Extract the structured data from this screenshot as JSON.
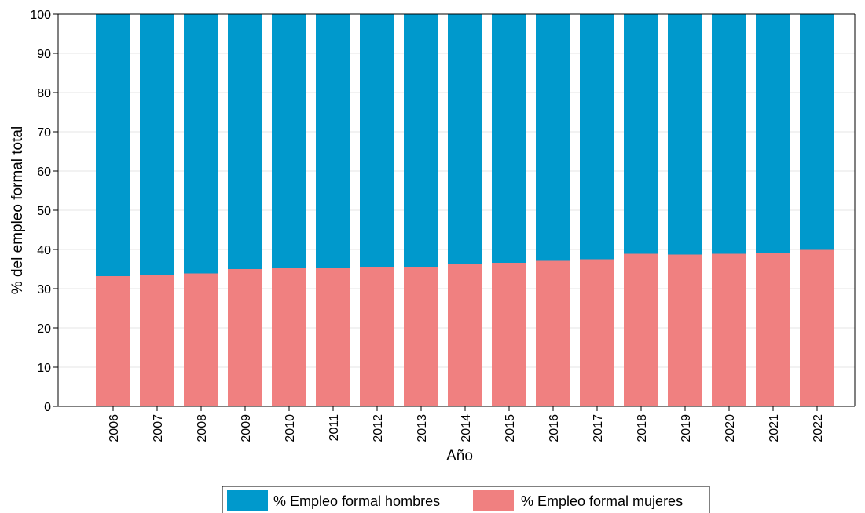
{
  "chart_data": {
    "type": "bar",
    "stacked": true,
    "categories": [
      "2006",
      "2007",
      "2008",
      "2009",
      "2010",
      "2011",
      "2012",
      "2013",
      "2014",
      "2015",
      "2016",
      "2017",
      "2018",
      "2019",
      "2020",
      "2021",
      "2022"
    ],
    "series": [
      {
        "name": "% Empleo formal mujeres",
        "color": "#F08080",
        "values": [
          33.2,
          33.6,
          33.9,
          35.0,
          35.2,
          35.2,
          35.4,
          35.6,
          36.3,
          36.6,
          37.1,
          37.5,
          38.9,
          38.7,
          38.9,
          39.1,
          39.9
        ]
      },
      {
        "name": "% Empleo formal hombres",
        "color": "#0099CC",
        "values": [
          66.8,
          66.4,
          66.1,
          65.0,
          64.8,
          64.8,
          64.6,
          64.4,
          63.7,
          63.4,
          62.9,
          62.5,
          61.1,
          61.3,
          61.1,
          60.9,
          60.1
        ]
      }
    ],
    "legend_order": [
      "% Empleo formal hombres",
      "% Empleo formal mujeres"
    ],
    "xlabel": "Año",
    "ylabel": "% del empleo formal total",
    "ylim": [
      0,
      100
    ],
    "yticks": [
      0,
      10,
      20,
      30,
      40,
      50,
      60,
      70,
      80,
      90,
      100
    ],
    "grid": true,
    "legend_position": "bottom"
  }
}
